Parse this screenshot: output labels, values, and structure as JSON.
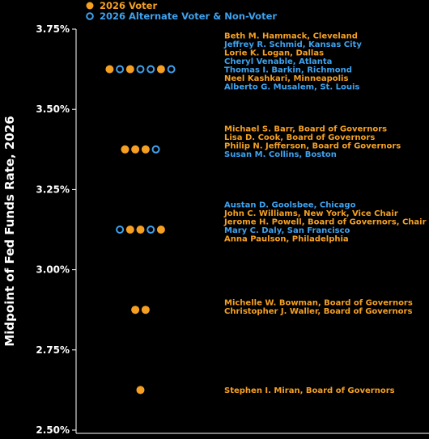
{
  "chart_data": {
    "type": "scatter",
    "title": "",
    "xlabel": "",
    "ylabel": "Midpoint of Fed Funds Rate, 2026",
    "ylim": [
      2.5,
      3.75
    ],
    "yticks": [
      "2.50%",
      "2.75%",
      "3.00%",
      "3.25%",
      "3.50%",
      "3.75%"
    ],
    "ytick_values": [
      2.5,
      2.75,
      3.0,
      3.25,
      3.5,
      3.75
    ],
    "legend_position": "top-left",
    "colors": {
      "voter": "#f5a023",
      "alternate": "#3ea2ef"
    },
    "series": [
      {
        "name": "2026 Voter",
        "marker": "filled-circle"
      },
      {
        "name": "2026 Alternate Voter & Non-Voter",
        "marker": "open-circle"
      }
    ],
    "groups": [
      {
        "rate": 3.625,
        "dots": [
          "voter",
          "alternate",
          "voter",
          "alternate",
          "alternate",
          "voter",
          "alternate"
        ],
        "members": [
          {
            "name": "Beth M. Hammack, Cleveland",
            "status": "voter"
          },
          {
            "name": "Jeffrey R. Schmid, Kansas City",
            "status": "alternate"
          },
          {
            "name": "Lorie K. Logan, Dallas",
            "status": "voter"
          },
          {
            "name": "Cheryl Venable, Atlanta",
            "status": "alternate"
          },
          {
            "name": "Thomas I. Barkin, Richmond",
            "status": "alternate"
          },
          {
            "name": "Neel Kashkari, Minneapolis",
            "status": "voter"
          },
          {
            "name": "Alberto G. Musalem, St. Louis",
            "status": "alternate"
          }
        ]
      },
      {
        "rate": 3.375,
        "dots": [
          "voter",
          "voter",
          "voter",
          "alternate"
        ],
        "members": [
          {
            "name": "Michael S. Barr, Board of Governors",
            "status": "voter"
          },
          {
            "name": "Lisa D. Cook, Board of Governors",
            "status": "voter"
          },
          {
            "name": "Philip N. Jefferson, Board of Governors",
            "status": "voter"
          },
          {
            "name": "Susan M. Collins, Boston",
            "status": "alternate"
          }
        ]
      },
      {
        "rate": 3.125,
        "dots": [
          "alternate",
          "voter",
          "voter",
          "alternate",
          "voter"
        ],
        "members": [
          {
            "name": "Austan D. Goolsbee, Chicago",
            "status": "alternate"
          },
          {
            "name": "John C. Williams, New York, Vice Chair",
            "status": "voter"
          },
          {
            "name": "Jerome H. Powell, Board of Governors, Chair",
            "status": "voter"
          },
          {
            "name": "Mary C. Daly, San Francisco",
            "status": "alternate"
          },
          {
            "name": "Anna Paulson, Philadelphia",
            "status": "voter"
          }
        ]
      },
      {
        "rate": 2.875,
        "dots": [
          "voter",
          "voter"
        ],
        "members": [
          {
            "name": "Michelle W. Bowman, Board of Governors",
            "status": "voter"
          },
          {
            "name": "Christopher J. Waller, Board of Governors",
            "status": "voter"
          }
        ]
      },
      {
        "rate": 2.625,
        "dots": [
          "voter"
        ],
        "members": [
          {
            "name": "Stephen I. Miran, Board of Governors",
            "status": "voter"
          }
        ]
      }
    ]
  }
}
